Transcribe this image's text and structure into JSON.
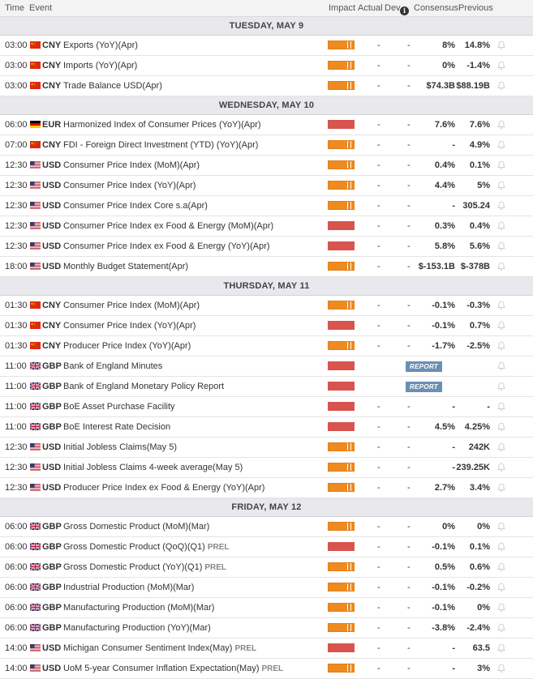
{
  "header": {
    "time": "Time",
    "event": "Event",
    "impact": "Impact",
    "actual": "Actual",
    "dev": "Dev",
    "consensus": "Consensus",
    "previous": "Previous"
  },
  "colors": {
    "impact_high": "#d9534f",
    "impact_medium": "#ee8a1f",
    "report_badge": "#6c8fb3",
    "day_bg": "#e8e8ed"
  },
  "sections": [
    {
      "day": "TUESDAY, MAY 9",
      "rows": [
        {
          "time": "03:00",
          "flag": "cn",
          "currency": "CNY",
          "event": "Exports (YoY)(Apr)",
          "prel": "",
          "impact": "medium",
          "actual": "-",
          "dev": "-",
          "consensus": "8%",
          "previous": "14.8%",
          "report": ""
        },
        {
          "time": "03:00",
          "flag": "cn",
          "currency": "CNY",
          "event": "Imports (YoY)(Apr)",
          "prel": "",
          "impact": "medium",
          "actual": "-",
          "dev": "-",
          "consensus": "0%",
          "previous": "-1.4%",
          "report": ""
        },
        {
          "time": "03:00",
          "flag": "cn",
          "currency": "CNY",
          "event": "Trade Balance USD(Apr)",
          "prel": "",
          "impact": "medium",
          "actual": "-",
          "dev": "-",
          "consensus": "$74.3B",
          "previous": "$88.19B",
          "report": ""
        }
      ]
    },
    {
      "day": "WEDNESDAY, MAY 10",
      "rows": [
        {
          "time": "06:00",
          "flag": "de",
          "currency": "EUR",
          "event": "Harmonized Index of Consumer Prices (YoY)(Apr)",
          "prel": "",
          "impact": "high",
          "actual": "-",
          "dev": "-",
          "consensus": "7.6%",
          "previous": "7.6%",
          "report": ""
        },
        {
          "time": "07:00",
          "flag": "cn",
          "currency": "CNY",
          "event": "FDI - Foreign Direct Investment (YTD) (YoY)(Apr)",
          "prel": "",
          "impact": "medium",
          "actual": "-",
          "dev": "-",
          "consensus": "-",
          "previous": "4.9%",
          "report": ""
        },
        {
          "time": "12:30",
          "flag": "us",
          "currency": "USD",
          "event": "Consumer Price Index (MoM)(Apr)",
          "prel": "",
          "impact": "medium",
          "actual": "-",
          "dev": "-",
          "consensus": "0.4%",
          "previous": "0.1%",
          "report": ""
        },
        {
          "time": "12:30",
          "flag": "us",
          "currency": "USD",
          "event": "Consumer Price Index (YoY)(Apr)",
          "prel": "",
          "impact": "medium",
          "actual": "-",
          "dev": "-",
          "consensus": "4.4%",
          "previous": "5%",
          "report": ""
        },
        {
          "time": "12:30",
          "flag": "us",
          "currency": "USD",
          "event": "Consumer Price Index Core s.a(Apr)",
          "prel": "",
          "impact": "medium",
          "actual": "-",
          "dev": "-",
          "consensus": "-",
          "previous": "305.24",
          "report": ""
        },
        {
          "time": "12:30",
          "flag": "us",
          "currency": "USD",
          "event": "Consumer Price Index ex Food & Energy (MoM)(Apr)",
          "prel": "",
          "impact": "high",
          "actual": "-",
          "dev": "-",
          "consensus": "0.3%",
          "previous": "0.4%",
          "report": ""
        },
        {
          "time": "12:30",
          "flag": "us",
          "currency": "USD",
          "event": "Consumer Price Index ex Food & Energy (YoY)(Apr)",
          "prel": "",
          "impact": "high",
          "actual": "-",
          "dev": "-",
          "consensus": "5.8%",
          "previous": "5.6%",
          "report": ""
        },
        {
          "time": "18:00",
          "flag": "us",
          "currency": "USD",
          "event": "Monthly Budget Statement(Apr)",
          "prel": "",
          "impact": "medium",
          "actual": "-",
          "dev": "-",
          "consensus": "$-153.1B",
          "previous": "$-378B",
          "report": ""
        }
      ]
    },
    {
      "day": "THURSDAY, MAY 11",
      "rows": [
        {
          "time": "01:30",
          "flag": "cn",
          "currency": "CNY",
          "event": "Consumer Price Index (MoM)(Apr)",
          "prel": "",
          "impact": "medium",
          "actual": "-",
          "dev": "-",
          "consensus": "-0.1%",
          "previous": "-0.3%",
          "report": ""
        },
        {
          "time": "01:30",
          "flag": "cn",
          "currency": "CNY",
          "event": "Consumer Price Index (YoY)(Apr)",
          "prel": "",
          "impact": "high",
          "actual": "-",
          "dev": "-",
          "consensus": "-0.1%",
          "previous": "0.7%",
          "report": ""
        },
        {
          "time": "01:30",
          "flag": "cn",
          "currency": "CNY",
          "event": "Producer Price Index (YoY)(Apr)",
          "prel": "",
          "impact": "medium",
          "actual": "-",
          "dev": "-",
          "consensus": "-1.7%",
          "previous": "-2.5%",
          "report": ""
        },
        {
          "time": "11:00",
          "flag": "gb",
          "currency": "GBP",
          "event": "Bank of England Minutes",
          "prel": "",
          "impact": "high",
          "actual": "",
          "dev": "",
          "consensus": "",
          "previous": "",
          "report": "REPORT"
        },
        {
          "time": "11:00",
          "flag": "gb",
          "currency": "GBP",
          "event": "Bank of England Monetary Policy Report",
          "prel": "",
          "impact": "high",
          "actual": "",
          "dev": "",
          "consensus": "",
          "previous": "",
          "report": "REPORT"
        },
        {
          "time": "11:00",
          "flag": "gb",
          "currency": "GBP",
          "event": "BoE Asset Purchase Facility",
          "prel": "",
          "impact": "high",
          "actual": "-",
          "dev": "-",
          "consensus": "-",
          "previous": "-",
          "report": ""
        },
        {
          "time": "11:00",
          "flag": "gb",
          "currency": "GBP",
          "event": "BoE Interest Rate Decision",
          "prel": "",
          "impact": "high",
          "actual": "-",
          "dev": "-",
          "consensus": "4.5%",
          "previous": "4.25%",
          "report": ""
        },
        {
          "time": "12:30",
          "flag": "us",
          "currency": "USD",
          "event": "Initial Jobless Claims(May 5)",
          "prel": "",
          "impact": "medium",
          "actual": "-",
          "dev": "-",
          "consensus": "-",
          "previous": "242K",
          "report": ""
        },
        {
          "time": "12:30",
          "flag": "us",
          "currency": "USD",
          "event": "Initial Jobless Claims 4-week average(May 5)",
          "prel": "",
          "impact": "medium",
          "actual": "-",
          "dev": "-",
          "consensus": "-",
          "previous": "239.25K",
          "report": ""
        },
        {
          "time": "12:30",
          "flag": "us",
          "currency": "USD",
          "event": "Producer Price Index ex Food & Energy (YoY)(Apr)",
          "prel": "",
          "impact": "medium",
          "actual": "-",
          "dev": "-",
          "consensus": "2.7%",
          "previous": "3.4%",
          "report": ""
        }
      ]
    },
    {
      "day": "FRIDAY, MAY 12",
      "rows": [
        {
          "time": "06:00",
          "flag": "gb",
          "currency": "GBP",
          "event": "Gross Domestic Product (MoM)(Mar)",
          "prel": "",
          "impact": "medium",
          "actual": "-",
          "dev": "-",
          "consensus": "0%",
          "previous": "0%",
          "report": ""
        },
        {
          "time": "06:00",
          "flag": "gb",
          "currency": "GBP",
          "event": "Gross Domestic Product (QoQ)(Q1)",
          "prel": "PREL",
          "impact": "high",
          "actual": "-",
          "dev": "-",
          "consensus": "-0.1%",
          "previous": "0.1%",
          "report": ""
        },
        {
          "time": "06:00",
          "flag": "gb",
          "currency": "GBP",
          "event": "Gross Domestic Product (YoY)(Q1)",
          "prel": "PREL",
          "impact": "medium",
          "actual": "-",
          "dev": "-",
          "consensus": "0.5%",
          "previous": "0.6%",
          "report": ""
        },
        {
          "time": "06:00",
          "flag": "gb",
          "currency": "GBP",
          "event": "Industrial Production (MoM)(Mar)",
          "prel": "",
          "impact": "medium",
          "actual": "-",
          "dev": "-",
          "consensus": "-0.1%",
          "previous": "-0.2%",
          "report": ""
        },
        {
          "time": "06:00",
          "flag": "gb",
          "currency": "GBP",
          "event": "Manufacturing Production (MoM)(Mar)",
          "prel": "",
          "impact": "medium",
          "actual": "-",
          "dev": "-",
          "consensus": "-0.1%",
          "previous": "0%",
          "report": ""
        },
        {
          "time": "06:00",
          "flag": "gb",
          "currency": "GBP",
          "event": "Manufacturing Production (YoY)(Mar)",
          "prel": "",
          "impact": "medium",
          "actual": "-",
          "dev": "-",
          "consensus": "-3.8%",
          "previous": "-2.4%",
          "report": ""
        },
        {
          "time": "14:00",
          "flag": "us",
          "currency": "USD",
          "event": "Michigan Consumer Sentiment Index(May)",
          "prel": "PREL",
          "impact": "high",
          "actual": "-",
          "dev": "-",
          "consensus": "-",
          "previous": "63.5",
          "report": ""
        },
        {
          "time": "14:00",
          "flag": "us",
          "currency": "USD",
          "event": "UoM 5-year Consumer Inflation Expectation(May)",
          "prel": "PREL",
          "impact": "medium",
          "actual": "-",
          "dev": "-",
          "consensus": "-",
          "previous": "3%",
          "report": ""
        }
      ]
    }
  ]
}
